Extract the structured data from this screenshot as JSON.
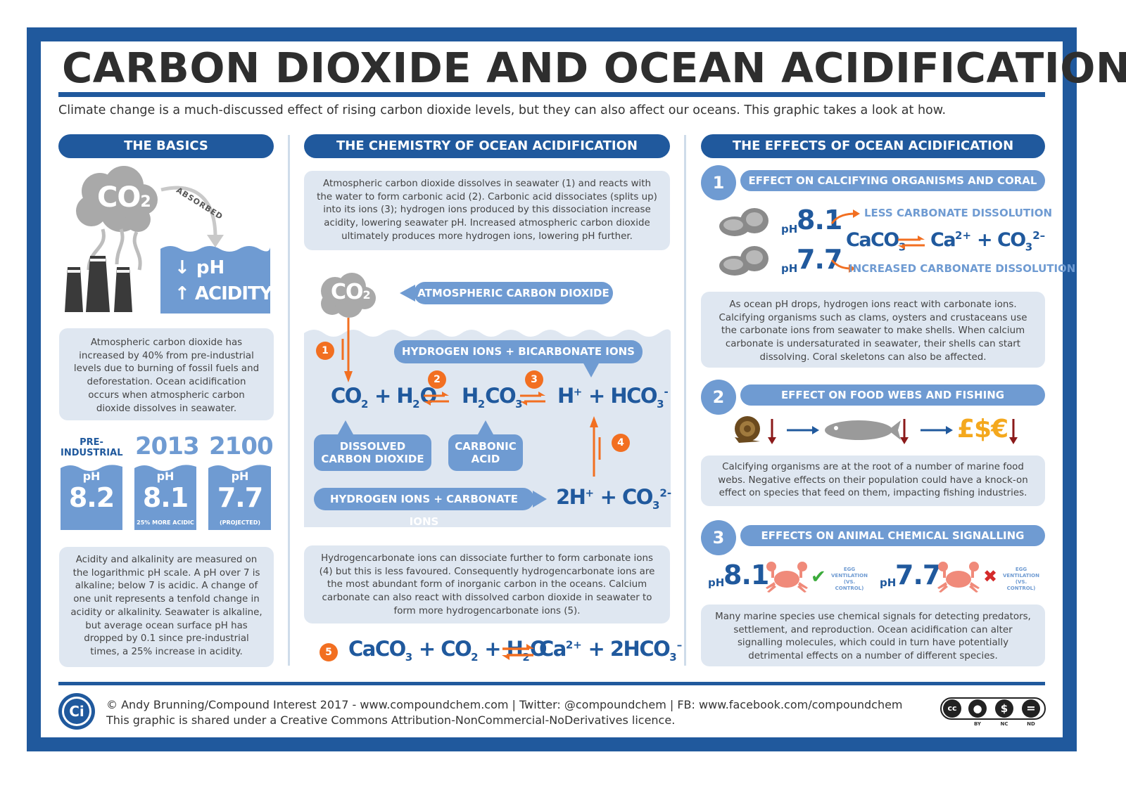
{
  "title": "CARBON DIOXIDE AND OCEAN ACIDIFICATION",
  "subtitle": "Climate change is a much-discussed effect of rising carbon dioxide levels, but they can also affect our oceans. This graphic takes a look at how.",
  "colors": {
    "navy": "#20599d",
    "mid": "#6f9bd2",
    "pale": "#dfe7f1",
    "orange": "#f26f21",
    "darkred": "#8b1a1a",
    "crab": "#f08a7a"
  },
  "basics": {
    "header": "THE BASICS",
    "co2": "CO2",
    "absorbed": "ABSORBED",
    "ph_label": "pH",
    "acidity_label": "ACIDITY",
    "text1": "Atmospheric carbon dioxide has increased by 40% from pre-industrial levels due to burning of fossil fuels and deforestation. Ocean acidification occurs when atmospheric carbon dioxide dissolves in seawater.",
    "ph_cards": [
      {
        "year": "PRE-INDUSTRIAL",
        "ph_label": "pH",
        "value": "8.2",
        "note": ""
      },
      {
        "year": "2013",
        "ph_label": "pH",
        "value": "8.1",
        "note": "25% MORE ACIDIC"
      },
      {
        "year": "2100",
        "ph_label": "pH",
        "value": "7.7",
        "note": "(PROJECTED)"
      }
    ],
    "text2": "Acidity and alkalinity are measured on the logarithmic pH scale. A pH over 7 is alkaline; below 7 is acidic. A change of one unit represents a tenfold change in acidity or alkalinity. Seawater is alkaline, but average ocean surface pH has dropped by 0.1 since pre-industrial times, a 25% increase in acidity."
  },
  "chemistry": {
    "header": "THE CHEMISTRY OF OCEAN ACIDIFICATION",
    "intro": "Atmospheric carbon dioxide dissolves in seawater (1) and reacts with the water to form carbonic acid (2). Carbonic acid dissociates (splits up) into its ions (3); hydrogen ions produced by this dissociation increase acidity, lowering seawater pH. Increased atmospheric carbon dioxide ultimately produces more hydrogen ions, lowering pH further.",
    "atmospheric_label": "ATMOSPHERIC CARBON DIOXIDE",
    "bicarbonate_label": "HYDROGEN IONS + BICARBONATE IONS",
    "dissolved_label": "DISSOLVED CARBON DIOXIDE",
    "carbonic_label": "CARBONIC ACID",
    "carbonate_label": "HYDROGEN IONS + CARBONATE IONS",
    "steps": [
      "1",
      "2",
      "3",
      "4",
      "5"
    ],
    "outro": "Hydrogencarbonate ions can dissociate further to form carbonate ions (4) but this is less favoured. Consequently hydrogencarbonate ions are the most abundant form of inorganic carbon in the oceans. Calcium carbonate can also react with dissolved carbon dioxide in seawater to form more hydrogencarbonate ions (5)."
  },
  "effects": {
    "header": "THE EFFECTS OF OCEAN ACIDIFICATION",
    "e1": {
      "num": "1",
      "title": "EFFECT ON CALCIFYING ORGANISMS AND CORAL",
      "ph_high": "8.1",
      "ph_low": "7.7",
      "ph_label": "pH",
      "less": "LESS CARBONATE DISSOLUTION",
      "more": "INCREASED CARBONATE DISSOLUTION",
      "text": "As ocean pH drops, hydrogen ions react with carbonate ions. Calcifying organisms such as clams, oysters and crustaceans use the carbonate ions from seawater to make shells. When calcium carbonate is undersaturated in seawater, their shells can start dissolving. Coral skeletons can also be affected."
    },
    "e2": {
      "num": "2",
      "title": "EFFECT ON FOOD WEBS AND FISHING",
      "money": "£$€",
      "text": "Calcifying organisms are at the root of a number of marine food webs. Negative effects on their population could have a knock-on effect on species that feed on them, impacting fishing industries."
    },
    "e3": {
      "num": "3",
      "title": "EFFECTS ON ANIMAL CHEMICAL SIGNALLING",
      "ph_label": "pH",
      "ph_high": "8.1",
      "ph_low": "7.7",
      "egg_label": "EGG VENTILATION",
      "vs_control": "(VS. CONTROL)",
      "text": "Many marine species use chemical signals for detecting predators, settlement, and reproduction. Ocean acidification can alter signalling molecules, which could in turn have potentially detrimental effects on a number of different species."
    }
  },
  "footer": {
    "logo": "Ci",
    "line1": "© Andy Brunning/Compound Interest 2017 - www.compoundchem.com | Twitter: @compoundchem | FB: www.facebook.com/compoundchem",
    "line2": "This graphic is shared under a Creative Commons Attribution-NonCommercial-NoDerivatives licence.",
    "cc_labels": [
      "BY",
      "NC",
      "ND"
    ]
  }
}
